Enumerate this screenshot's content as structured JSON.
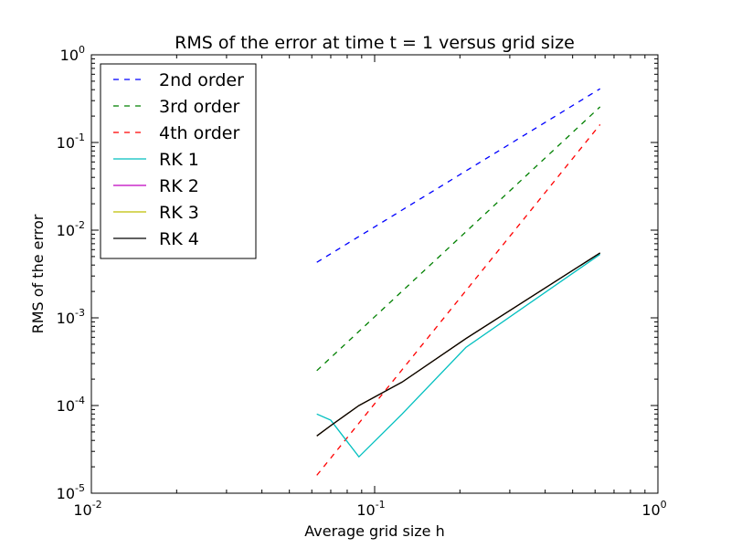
{
  "chart_data": {
    "type": "line",
    "title": "RMS of the error at time t = 1 versus grid size",
    "xlabel": "Average grid size h",
    "ylabel": "RMS of the error",
    "xscale": "log",
    "yscale": "log",
    "xlim": [
      0.01,
      1
    ],
    "ylim": [
      1e-05,
      1
    ],
    "x_ticks": [
      {
        "value": 0.01,
        "base": "10",
        "exp": "-2"
      },
      {
        "value": 0.1,
        "base": "10",
        "exp": "-1"
      },
      {
        "value": 1,
        "base": "10",
        "exp": "0"
      }
    ],
    "y_ticks": [
      {
        "value": 1e-05,
        "base": "10",
        "exp": "-5"
      },
      {
        "value": 0.0001,
        "base": "10",
        "exp": "-4"
      },
      {
        "value": 0.001,
        "base": "10",
        "exp": "-3"
      },
      {
        "value": 0.01,
        "base": "10",
        "exp": "-2"
      },
      {
        "value": 0.1,
        "base": "10",
        "exp": "-1"
      },
      {
        "value": 1,
        "base": "10",
        "exp": "0"
      }
    ],
    "grid": false,
    "legend": "top-left",
    "series": [
      {
        "name": "2nd order",
        "color": "#0000ff",
        "style": "dashed",
        "x": [
          0.0625,
          0.625
        ],
        "y": [
          0.0043,
          0.41
        ]
      },
      {
        "name": "3rd order",
        "color": "#008000",
        "style": "dashed",
        "x": [
          0.0625,
          0.625
        ],
        "y": [
          0.00025,
          0.255
        ]
      },
      {
        "name": "4th order",
        "color": "#ff0000",
        "style": "dashed",
        "x": [
          0.0625,
          0.625
        ],
        "y": [
          1.6e-05,
          0.16
        ]
      },
      {
        "name": "RK 1",
        "color": "#00bfbf",
        "style": "solid",
        "x": [
          0.0625,
          0.07,
          0.088,
          0.125,
          0.21,
          0.625
        ],
        "y": [
          8e-05,
          6.8e-05,
          2.6e-05,
          8e-05,
          0.00046,
          0.0053
        ]
      },
      {
        "name": "RK 2",
        "color": "#bf00bf",
        "style": "solid",
        "x": [
          0.0625,
          0.07,
          0.088,
          0.125,
          0.21,
          0.625
        ],
        "y": [
          4.5e-05,
          5.9e-05,
          0.0001,
          0.000185,
          0.00058,
          0.0055
        ]
      },
      {
        "name": "RK 3",
        "color": "#bfbf00",
        "style": "solid",
        "x": [
          0.0625,
          0.07,
          0.088,
          0.125,
          0.21,
          0.625
        ],
        "y": [
          4.5e-05,
          5.9e-05,
          0.0001,
          0.000185,
          0.00058,
          0.0055
        ]
      },
      {
        "name": "RK 4",
        "color": "#000000",
        "style": "solid",
        "x": [
          0.0625,
          0.07,
          0.088,
          0.125,
          0.21,
          0.625
        ],
        "y": [
          4.5e-05,
          5.9e-05,
          0.0001,
          0.000185,
          0.00058,
          0.0055
        ]
      }
    ]
  }
}
